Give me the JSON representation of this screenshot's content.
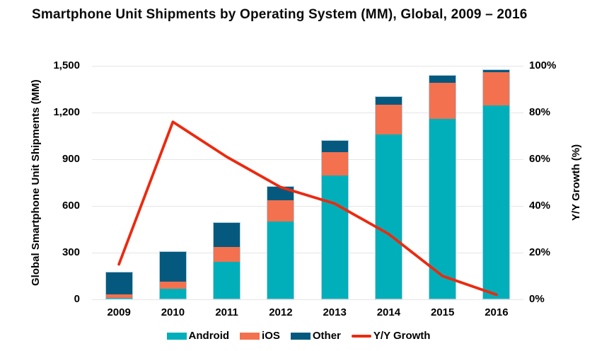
{
  "title": "Smartphone Unit Shipments by Operating System (MM), Global, 2009 – 2016",
  "chart_data": {
    "type": "bar",
    "variant": "stacked-columns-with-line-overlay",
    "title": "Smartphone Unit Shipments by Operating System (MM), Global, 2009 – 2016",
    "categories": [
      "2009",
      "2010",
      "2011",
      "2012",
      "2013",
      "2014",
      "2015",
      "2016"
    ],
    "series": [
      {
        "name": "Android",
        "color": "#00AFB9",
        "values": [
          7,
          67,
          243,
          500,
          794,
          1059,
          1161,
          1246
        ]
      },
      {
        "name": "iOS",
        "color": "#F3714F",
        "values": [
          25,
          48,
          93,
          136,
          153,
          193,
          232,
          215
        ]
      },
      {
        "name": "Other",
        "color": "#05597E",
        "values": [
          142,
          190,
          155,
          89,
          72,
          50,
          44,
          10
        ]
      }
    ],
    "line_series": {
      "name": "Y/Y Growth",
      "color": "#EB2A10",
      "axis": "right",
      "unit": "%",
      "values": [
        15,
        76,
        61,
        48,
        41,
        28,
        10,
        2
      ]
    },
    "stack_order_bottom_to_top": [
      "Android",
      "iOS",
      "Other"
    ],
    "xlabel": "",
    "ylabel_left": "Global Smartphone Unit Shipments (MM)",
    "ylabel_right": "Y/Y Growth (%)",
    "yticks_left": [
      "0",
      "300",
      "600",
      "900",
      "1,200",
      "1,500"
    ],
    "yticks_right": [
      "0%",
      "20%",
      "40%",
      "60%",
      "80%",
      "100%"
    ],
    "ylim_left": [
      0,
      1500
    ],
    "ylim_right": [
      0,
      100
    ],
    "grid": "horizontal",
    "grid_color": "#E5E5E5",
    "legend_position": "bottom",
    "legend": [
      "Android",
      "iOS",
      "Other",
      "Y/Y Growth"
    ]
  }
}
